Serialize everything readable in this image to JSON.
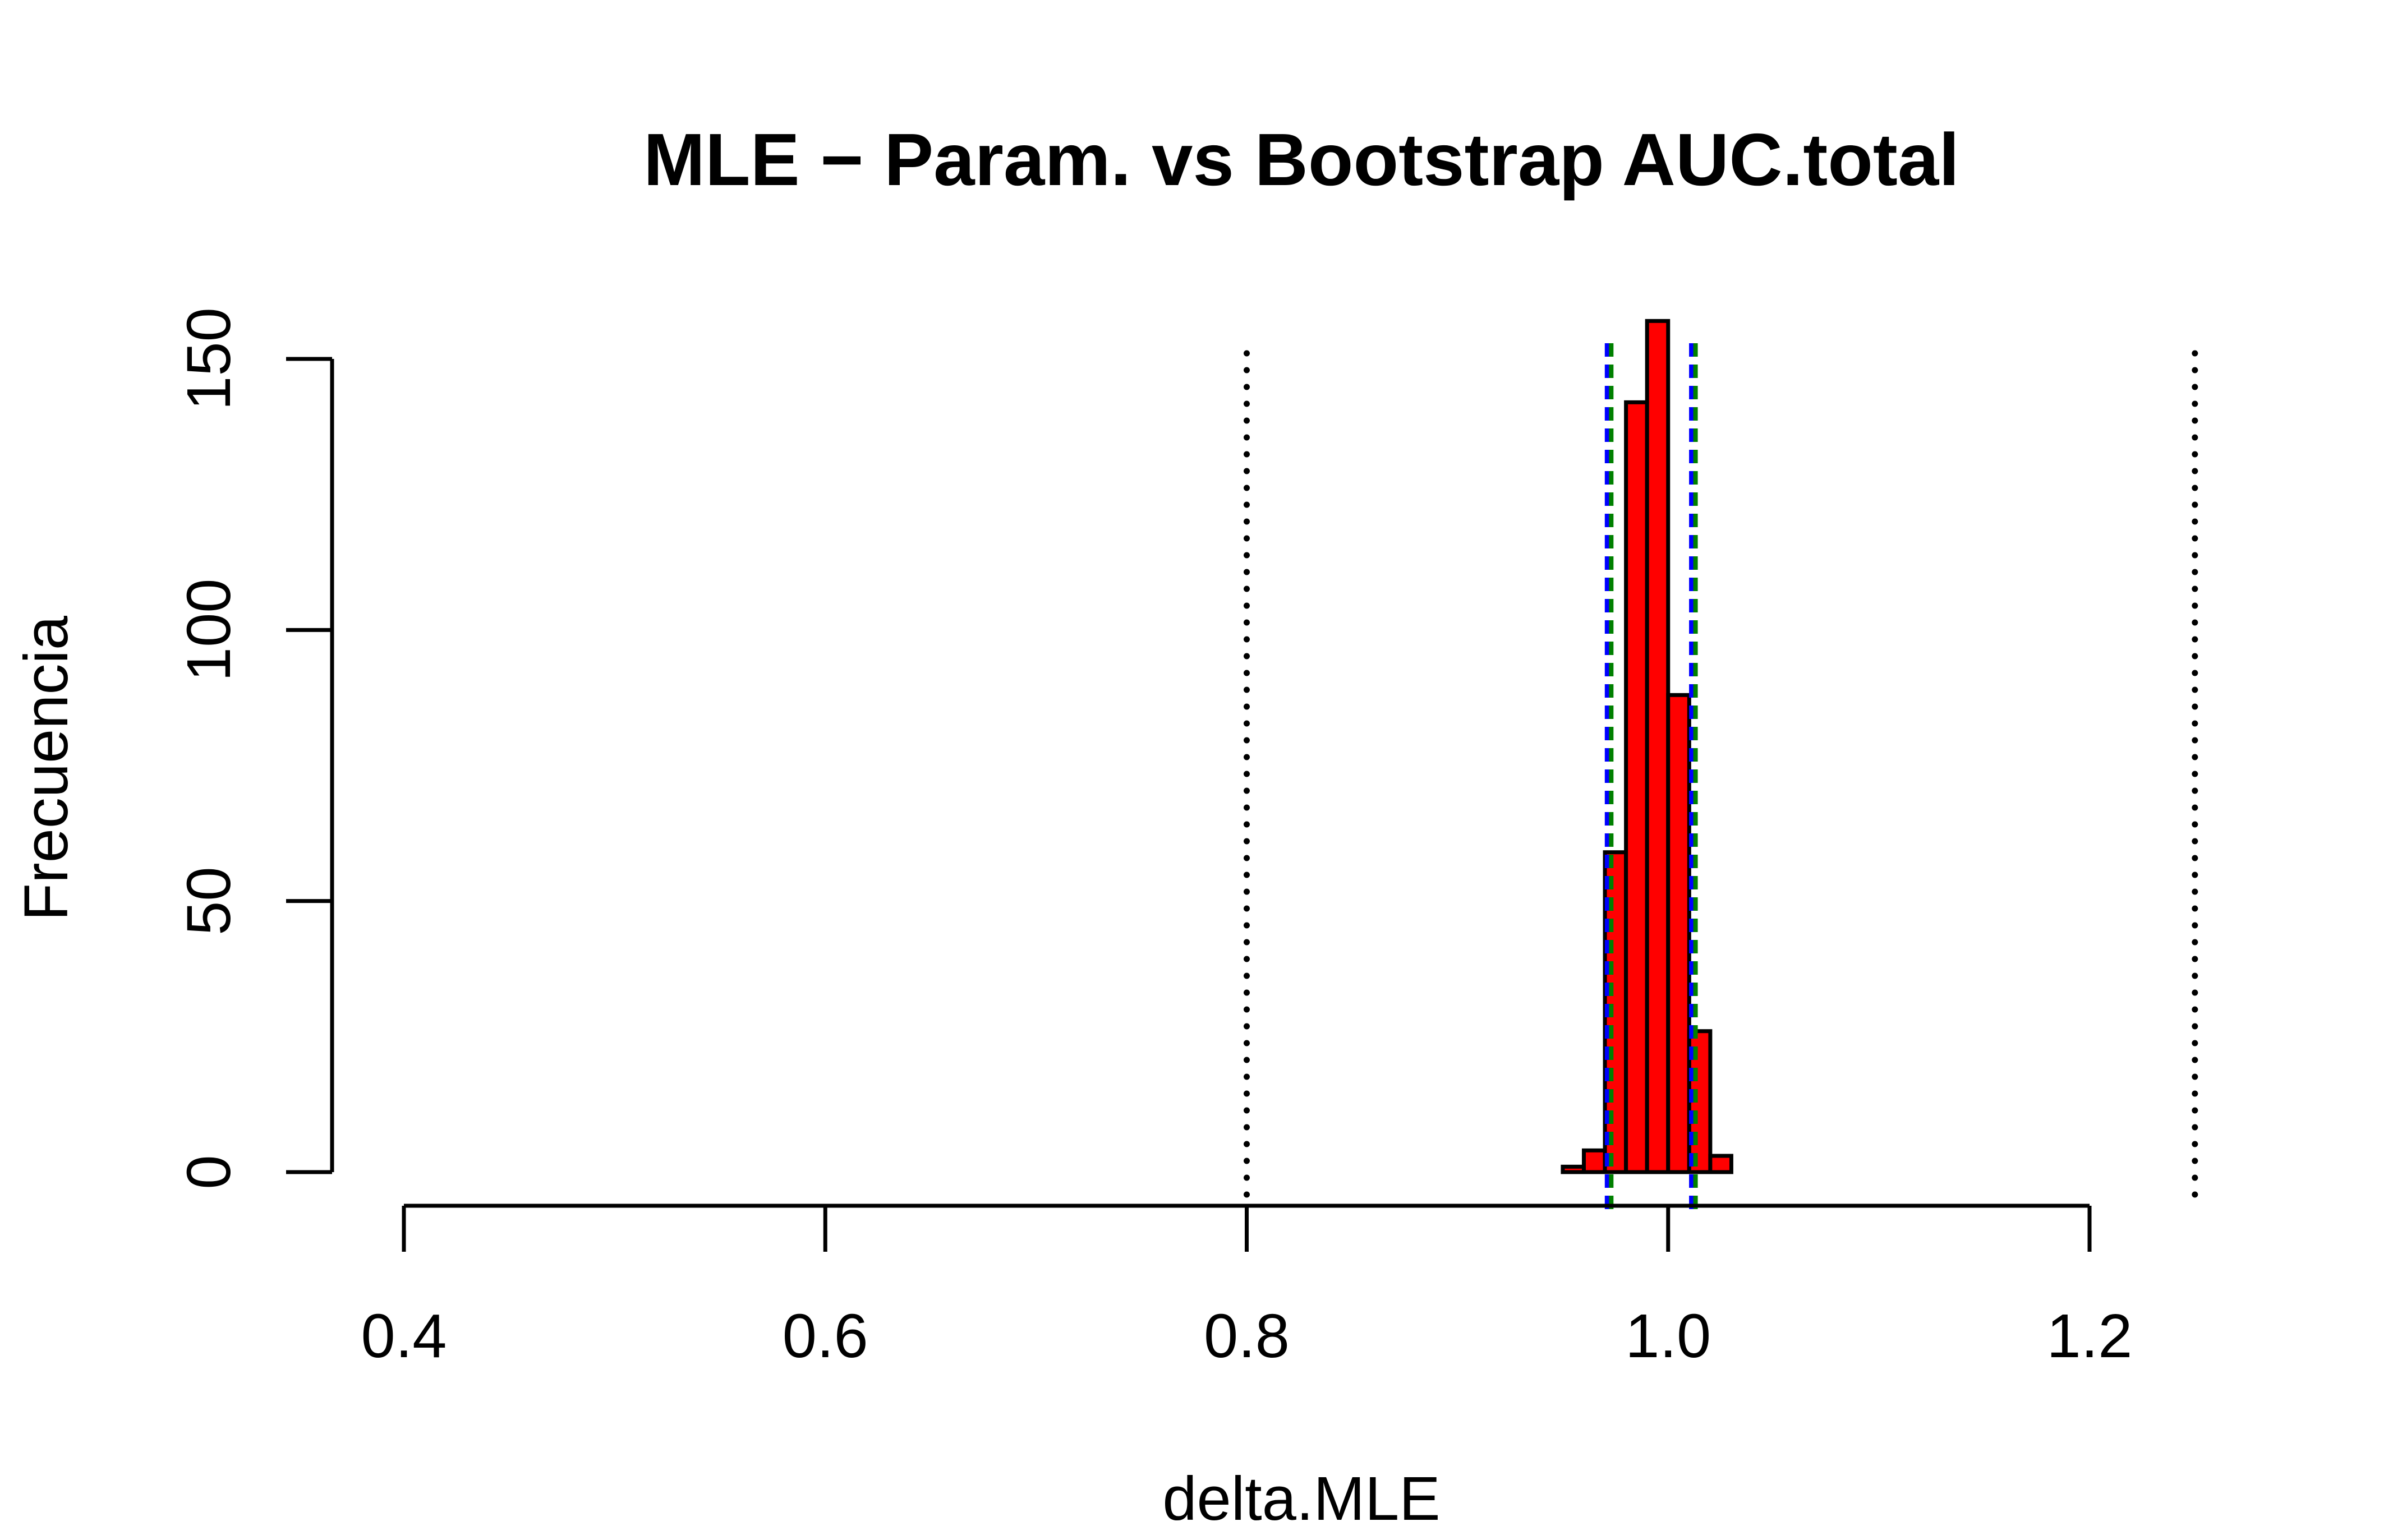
{
  "chart_data": {
    "type": "bar",
    "title": "MLE − Param. vs Bootstrap AUC.total",
    "xlabel": "delta.MLE",
    "ylabel": "Frecuencia",
    "x_ticks": [
      "0.4",
      "0.6",
      "0.8",
      "1.0",
      "1.2"
    ],
    "x_tick_values": [
      0.4,
      0.6,
      0.8,
      1.0,
      1.2
    ],
    "y_ticks": [
      "0",
      "50",
      "100",
      "150"
    ],
    "y_tick_values": [
      0,
      50,
      100,
      150
    ],
    "xlim": [
      0.4,
      1.2
    ],
    "ylim": [
      0,
      150
    ],
    "bin_width": 0.01,
    "bins": [
      {
        "start": 0.95,
        "count": 1
      },
      {
        "start": 0.96,
        "count": 4
      },
      {
        "start": 0.97,
        "count": 59
      },
      {
        "start": 0.98,
        "count": 142
      },
      {
        "start": 0.99,
        "count": 157
      },
      {
        "start": 1.0,
        "count": 88
      },
      {
        "start": 1.01,
        "count": 26
      },
      {
        "start": 1.02,
        "count": 3
      }
    ],
    "reference_lines": [
      {
        "x": 0.8,
        "style": "dotted",
        "color": "#000000"
      },
      {
        "x": 1.25,
        "style": "dotted",
        "color": "#000000"
      },
      {
        "x": 0.971,
        "style": "dashed",
        "color": "#0000ff"
      },
      {
        "x": 1.011,
        "style": "dashed",
        "color": "#0000ff"
      },
      {
        "x": 0.973,
        "style": "dashed",
        "color": "#008000"
      },
      {
        "x": 1.013,
        "style": "dashed",
        "color": "#008000"
      }
    ],
    "bar_color": "#ff0000",
    "grid": false,
    "legend": "none"
  }
}
